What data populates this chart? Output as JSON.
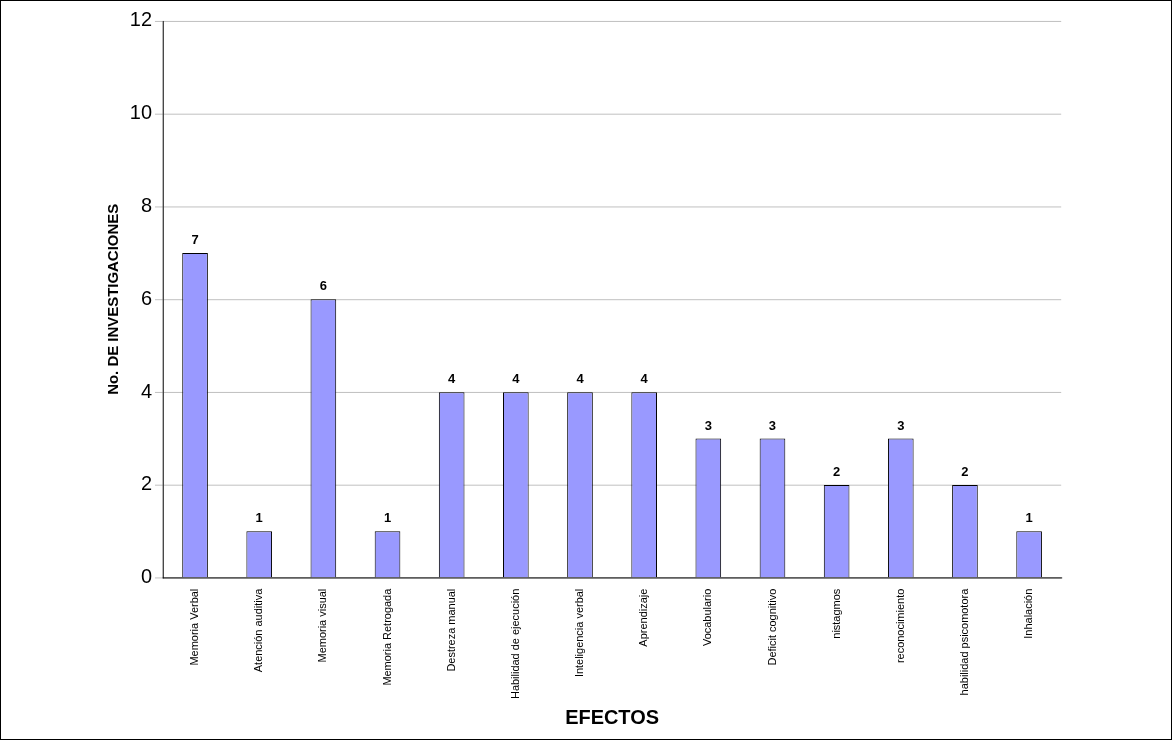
{
  "chart_data": {
    "type": "bar",
    "xlabel": "EFECTOS",
    "ylabel": "No. DE INVESTIGACIONES",
    "categories": [
      "Memoria Verbal",
      "Atención auditiva",
      "Memoria visual",
      "Memoria Retrogada",
      "Destreza manual",
      "Habilidad de ejecución",
      "Inteligencia verbal",
      "Aprendizaje",
      "Vocabulario",
      "Deficit cognitivo",
      "nistagmos",
      "reconocimiento",
      "habilidad psicomotora",
      "Inhalación"
    ],
    "values": [
      7,
      1,
      6,
      1,
      4,
      4,
      4,
      4,
      3,
      3,
      2,
      3,
      2,
      1
    ],
    "color": "#9999ff",
    "ylim": [
      0,
      12
    ],
    "yticks": [
      0,
      2,
      4,
      6,
      8,
      10,
      12
    ],
    "grid": "y",
    "data_labels": true,
    "legend": false
  }
}
